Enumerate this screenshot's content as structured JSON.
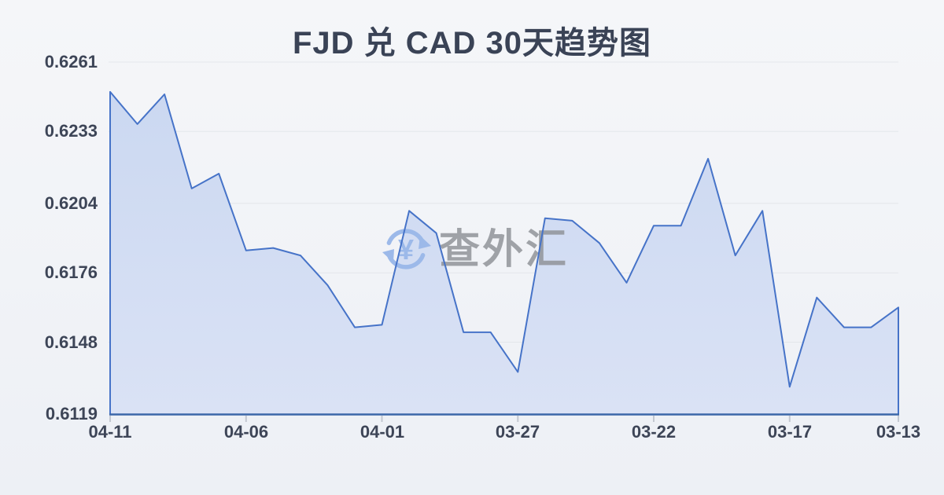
{
  "watermark": {
    "symbol": "¥",
    "text": "查外汇",
    "icon": "circular-refresh-arrows-yen-icon",
    "color_icon": "#9cb9e9",
    "color_text": "#8e9196"
  },
  "colors": {
    "background": "#f1f3f7",
    "title_text": "#3a4356",
    "axis_text": "#3d4557",
    "line": "#4673c8",
    "area_fill_top": "#cbd8f1",
    "area_fill_bottom": "#dae2f5",
    "axis_line": "#3c67a9",
    "gridline": "#e3e6eb"
  },
  "chart_data": {
    "type": "area",
    "title": "FJD 兑 CAD 30天趋势图",
    "xlabel": "",
    "ylabel": "",
    "legend": "none",
    "grid": "horizontal",
    "x_direction": "dates descend left to right (newest on left)",
    "ylim": [
      0.6119,
      0.6261
    ],
    "yticks": [
      0.6261,
      0.6233,
      0.6204,
      0.6176,
      0.6148,
      0.6119
    ],
    "x_ticks": [
      {
        "index": 0,
        "label": "04-11"
      },
      {
        "index": 5,
        "label": "04-06"
      },
      {
        "index": 10,
        "label": "04-01"
      },
      {
        "index": 15,
        "label": "03-27"
      },
      {
        "index": 20,
        "label": "03-22"
      },
      {
        "index": 25,
        "label": "03-17"
      },
      {
        "index": 29,
        "label": "03-13"
      }
    ],
    "categories": [
      "04-11",
      "04-10",
      "04-09",
      "04-08",
      "04-07",
      "04-06",
      "04-05",
      "04-04",
      "04-03",
      "04-02",
      "04-01",
      "03-31",
      "03-30",
      "03-29",
      "03-28",
      "03-27",
      "03-26",
      "03-25",
      "03-24",
      "03-23",
      "03-22",
      "03-21",
      "03-20",
      "03-19",
      "03-18",
      "03-17",
      "03-16",
      "03-15",
      "03-14",
      "03-13"
    ],
    "values": [
      0.6249,
      0.6236,
      0.6248,
      0.621,
      0.6216,
      0.6185,
      0.6186,
      0.6183,
      0.6171,
      0.6154,
      0.6155,
      0.6201,
      0.6192,
      0.6152,
      0.6152,
      0.6136,
      0.6198,
      0.6197,
      0.6188,
      0.6172,
      0.6195,
      0.6195,
      0.6222,
      0.6183,
      0.6201,
      0.613,
      0.6166,
      0.6154,
      0.6154,
      0.6162
    ]
  }
}
